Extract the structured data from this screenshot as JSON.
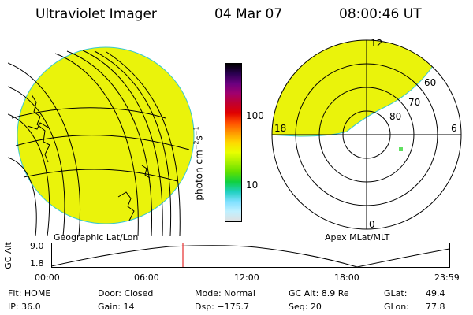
{
  "header": {
    "instrument": "Ultraviolet Imager",
    "date": "04 Mar 07",
    "time": "08:00:46 UT"
  },
  "colorbar": {
    "unit_label": "photon cm^-2 s^-1",
    "ticks": [
      "100",
      "10"
    ],
    "scale": "log",
    "colors": [
      "#000000",
      "#2a0050",
      "#6a0080",
      "#a0006e",
      "#c00030",
      "#e00000",
      "#ff5000",
      "#ff9800",
      "#ffd800",
      "#e8ff00",
      "#a8f000",
      "#60e000",
      "#10d040",
      "#20d0c0",
      "#80e0ff",
      "#c0f0ff",
      "#e0e0e0"
    ]
  },
  "left_panel": {
    "caption": "Geographic Lat/Lon",
    "fill_color": "#eaf30b"
  },
  "right_panel": {
    "caption": "Apex MLat/MLT",
    "mlt_labels": {
      "top": "12",
      "right": "6",
      "bottom": "0",
      "left": "18"
    },
    "lat_labels": [
      "60",
      "70",
      "80"
    ],
    "fill_color": "#eaf30b"
  },
  "altitude_plot": {
    "ylabel": "GC Alt",
    "yticks": [
      "9.0",
      "1.8"
    ],
    "xticks": [
      "00:00",
      "06:00",
      "12:00",
      "18:00",
      "23:59"
    ],
    "current_time_marker": "08:00"
  },
  "info": {
    "flt": "Flt: HOME",
    "door": "Door: Closed",
    "mode": "Mode: Normal",
    "gc_alt": "GC Alt: 8.9 Re",
    "glat_label": "GLat:",
    "glat_value": "49.4",
    "ip": "IP: 36.0",
    "gain": "Gain: 14",
    "dsp": "Dsp: −175.7",
    "seq": "Seq: 20",
    "glon_label": "GLon:",
    "glon_value": "77.8"
  }
}
